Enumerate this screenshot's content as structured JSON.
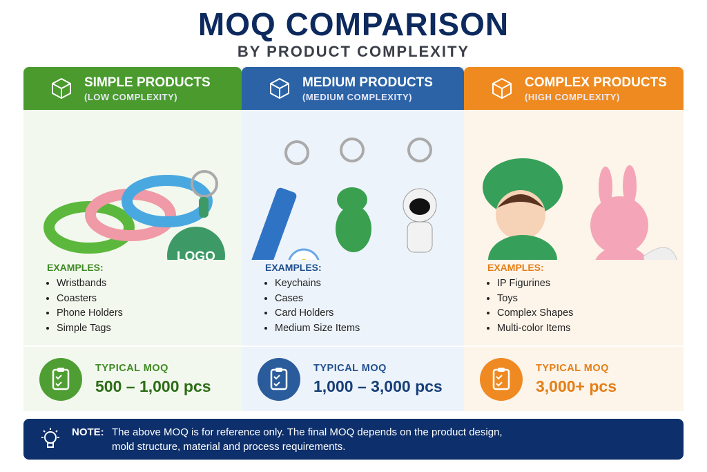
{
  "header": {
    "title": "MOQ COMPARISON",
    "subtitle": "BY PRODUCT COMPLEXITY"
  },
  "columns": [
    {
      "title": "SIMPLE PRODUCTS",
      "subtitle": "(LOW COMPLEXITY)",
      "tag_text": "LOGO",
      "examples_label": "EXAMPLES:",
      "examples": [
        "Wristbands",
        "Coasters",
        "Phone Holders",
        "Simple Tags"
      ],
      "moq_label": "TYPICAL MOQ",
      "moq_value": "500 – 1,000 pcs"
    },
    {
      "title": "MEDIUM PRODUCTS",
      "subtitle": "(MEDIUM COMPLEXITY)",
      "examples_label": "EXAMPLES:",
      "examples": [
        "Keychains",
        "Cases",
        "Card Holders",
        "Medium Size Items"
      ],
      "moq_label": "TYPICAL MOQ",
      "moq_value": "1,000 – 3,000 pcs"
    },
    {
      "title": "COMPLEX PRODUCTS",
      "subtitle": "(HIGH COMPLEXITY)",
      "examples_label": "EXAMPLES:",
      "examples": [
        "IP Figurines",
        "Toys",
        "Complex Shapes",
        "Multi-color Items"
      ],
      "moq_label": "TYPICAL MOQ",
      "moq_value": "3,000+ pcs"
    }
  ],
  "note": {
    "label": "NOTE:",
    "lines": [
      "The above MOQ is for reference only. The final MOQ depends on the product design,",
      "mold structure, material and process requirements."
    ]
  }
}
